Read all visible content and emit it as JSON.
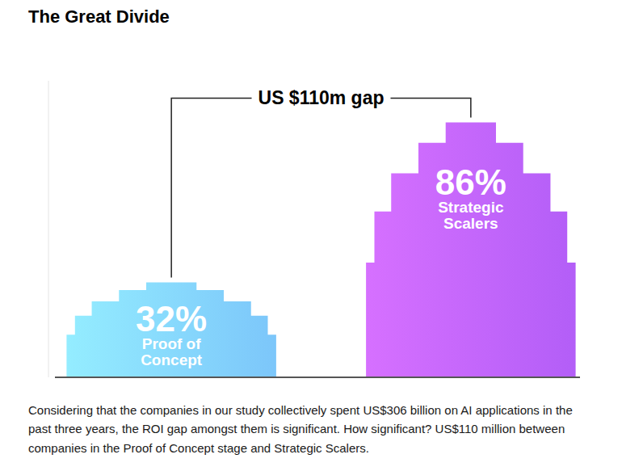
{
  "chart_data": {
    "type": "bar",
    "title": "The Great Divide",
    "categories": [
      "Proof of Concept",
      "Strategic Scalers"
    ],
    "values": [
      32,
      86
    ],
    "value_labels": [
      "32%",
      "86%"
    ],
    "colors": [
      "#7cc6fa",
      "#b35ef7"
    ],
    "ylim": [
      0,
      100
    ],
    "data_labels": true,
    "tick_labels": false,
    "annotations": [
      "US $110m gap"
    ],
    "caption": "Considering that the companies in our study collectively spent US$306 billion on AI applications in the past three years, the ROI gap amongst them is significant. How significant? US$110 million between companies in the Proof of Concept stage and Strategic Scalers."
  }
}
